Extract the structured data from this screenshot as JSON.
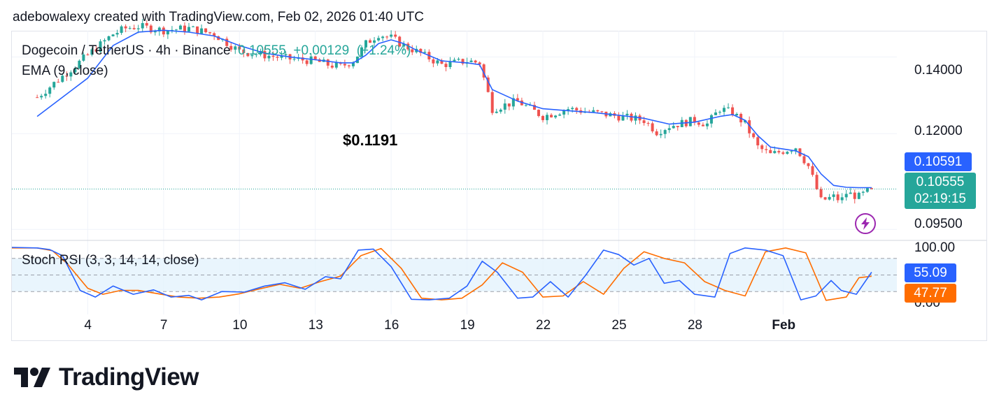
{
  "header": {
    "text": "adebowalexy created with TradingView.com, Feb 02, 2026 01:40 UTC"
  },
  "legend": {
    "symbol": "Dogecoin / TetherUS · 4h · Binance",
    "last": "0.10555",
    "change": "+0.00129",
    "change_pct": "(+1.24%)",
    "ema_label": "EMA (9, close)"
  },
  "annotation": "$0.1191",
  "price_tags": {
    "ema_value": "0.10591",
    "last_price": "0.10555",
    "countdown": "02:19:15"
  },
  "rsi_tags": {
    "k_value": "55.09",
    "d_value": "47.77"
  },
  "colors": {
    "up": "#26a69a",
    "down": "#ef5350",
    "ema": "#2962ff",
    "rsi_k": "#2962ff",
    "rsi_d": "#ff6d00",
    "rsi_band": "#e3f2fd",
    "price_tag": "#26a69a",
    "ema_tag": "#2962ff",
    "d_tag": "#ff6d00",
    "bolt": "#9c27b0"
  },
  "icons": {
    "alert": "lightning-bolt-icon",
    "logo": "tradingview-logo-icon"
  },
  "logo_text": "TradingView",
  "chart_data": [
    {
      "type": "candlestick",
      "title": "Dogecoin / TetherUS · 4h · Binance",
      "x_ticks": [
        "4",
        "7",
        "10",
        "13",
        "16",
        "19",
        "22",
        "25",
        "28",
        "Feb"
      ],
      "y_ticks": [
        "0.14000",
        "0.12000",
        "0.09500"
      ],
      "ylim": [
        0.0925,
        0.1465
      ],
      "grid": true,
      "series": [
        {
          "name": "Dogecoin / TetherUS",
          "kind": "ohlc-close-path",
          "x": [
            1,
            3,
            4,
            4.5,
            5,
            6,
            7,
            8,
            9,
            10,
            11,
            12,
            12.5,
            13,
            13.5,
            14,
            14.5,
            15,
            15.5,
            16,
            17,
            18,
            18.5,
            19,
            20,
            21,
            22,
            23,
            24,
            25,
            25.5,
            26,
            27,
            27.5,
            28,
            28.5,
            29,
            29.5,
            30,
            30.5,
            31,
            31.5,
            32,
            32.5,
            32.8,
            33,
            33.5,
            34
          ],
          "close": [
            0.1295,
            0.1405,
            0.146,
            0.1475,
            0.148,
            0.147,
            0.1475,
            0.146,
            0.1415,
            0.1405,
            0.1395,
            0.139,
            0.138,
            0.1375,
            0.139,
            0.1435,
            0.146,
            0.145,
            0.143,
            0.1415,
            0.138,
            0.139,
            0.1385,
            0.1265,
            0.1285,
            0.1245,
            0.1265,
            0.1255,
            0.1245,
            0.1235,
            0.1205,
            0.122,
            0.1235,
            0.1225,
            0.1265,
            0.1255,
            0.1225,
            0.1165,
            0.1145,
            0.1155,
            0.1165,
            0.1115,
            0.1025,
            0.1035,
            0.1025,
            0.1045,
            0.1035,
            0.10555
          ]
        },
        {
          "name": "EMA (9, close)",
          "x": [
            1,
            3,
            4,
            5,
            6,
            7,
            8,
            9,
            10,
            11,
            12,
            13,
            13.5,
            14,
            14.5,
            15,
            15.5,
            16,
            17,
            18,
            18.5,
            19,
            20,
            21,
            22,
            23,
            24,
            25,
            26,
            27,
            28,
            28.5,
            29,
            29.5,
            30,
            30.5,
            31,
            31.5,
            32,
            32.5,
            33,
            33.5,
            34
          ],
          "values": [
            0.1245,
            0.1345,
            0.143,
            0.1465,
            0.147,
            0.1465,
            0.1455,
            0.143,
            0.141,
            0.14,
            0.1393,
            0.1385,
            0.1385,
            0.1405,
            0.1435,
            0.1445,
            0.1435,
            0.1418,
            0.139,
            0.1385,
            0.138,
            0.1315,
            0.1285,
            0.1265,
            0.126,
            0.1255,
            0.1248,
            0.124,
            0.1225,
            0.123,
            0.1245,
            0.125,
            0.1235,
            0.1195,
            0.1165,
            0.116,
            0.1155,
            0.114,
            0.1095,
            0.1065,
            0.106,
            0.1059,
            0.10591
          ]
        }
      ],
      "last_price": 0.10555,
      "ema_last": 0.10591,
      "annotation": "$0.1191"
    },
    {
      "type": "line",
      "title": "Stoch RSI (3, 3, 14, 14, close)",
      "y_ticks": [
        "100.00",
        "0.00"
      ],
      "ylim": [
        0,
        100
      ],
      "band": [
        20,
        80
      ],
      "midline": 50,
      "series": [
        {
          "name": "K",
          "x": [
            0,
            1,
            1.5,
            2,
            2.7,
            3.3,
            4,
            4.8,
            5.6,
            6.3,
            7,
            7.5,
            8.3,
            9.2,
            10,
            10.8,
            11.6,
            12.4,
            13,
            13.7,
            14.3,
            15,
            15.8,
            16.5,
            17.3,
            18,
            18.6,
            19.2,
            20,
            20.6,
            21.3,
            22,
            22.7,
            23.4,
            24,
            24.6,
            25.2,
            25.8,
            26.4,
            27,
            27.8,
            28.4,
            29,
            29.8,
            30.5,
            31.2,
            31.8,
            32.4,
            32.8,
            33.4,
            34
          ],
          "values": [
            100,
            99,
            96,
            85,
            22,
            10,
            30,
            15,
            23,
            10,
            13,
            5,
            20,
            19,
            30,
            36,
            24,
            47,
            43,
            95,
            97,
            65,
            6,
            5,
            8,
            30,
            75,
            55,
            8,
            10,
            38,
            10,
            50,
            95,
            87,
            68,
            80,
            35,
            40,
            15,
            10,
            89,
            99,
            95,
            85,
            5,
            12,
            40,
            22,
            15,
            55.09
          ]
        },
        {
          "name": "D",
          "x": [
            0,
            1,
            1.6,
            2.2,
            3,
            3.6,
            4.3,
            5,
            5.8,
            6.6,
            7.4,
            8.2,
            9,
            9.8,
            10.6,
            11.4,
            12.2,
            13,
            13.8,
            14.6,
            15.4,
            16.2,
            17,
            17.8,
            18.6,
            19.4,
            20.2,
            21,
            21.8,
            22.6,
            23.4,
            24.2,
            25,
            25.8,
            26.6,
            27.4,
            28.2,
            29,
            29.8,
            30.6,
            31.4,
            32.2,
            33,
            33.5,
            34
          ],
          "values": [
            99,
            99,
            94,
            70,
            26,
            15,
            22,
            22,
            16,
            10,
            8,
            10,
            16,
            25,
            33,
            26,
            38,
            48,
            85,
            98,
            62,
            8,
            5,
            8,
            32,
            72,
            55,
            10,
            12,
            38,
            15,
            62,
            92,
            80,
            72,
            38,
            22,
            12,
            92,
            99,
            90,
            4,
            10,
            45,
            47.77
          ]
        }
      ]
    }
  ]
}
